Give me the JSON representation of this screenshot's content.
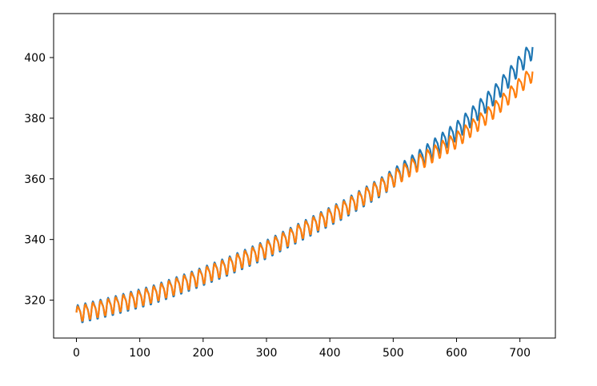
{
  "chart_data": {
    "type": "line",
    "title": "",
    "xlabel": "",
    "ylabel": "",
    "xlim": [
      -36,
      756
    ],
    "ylim": [
      307.5,
      414.5
    ],
    "xticks": [
      0,
      100,
      200,
      300,
      400,
      500,
      600,
      700
    ],
    "yticks": [
      320,
      340,
      360,
      380,
      400
    ],
    "grid": false,
    "legend": "none",
    "seasonal_period": 12,
    "series": [
      {
        "color": "#1f77b4",
        "trend_x": [
          0,
          60,
          120,
          180,
          240,
          300,
          360,
          420,
          480,
          540,
          600,
          660,
          720
        ],
        "trend_y": [
          315.5,
          318.5,
          322.0,
          326.5,
          331.5,
          337.0,
          343.5,
          350.0,
          357.5,
          366.5,
          376.0,
          388.0,
          403.0
        ],
        "seasonal_amplitude": 3.3
      },
      {
        "color": "#ff7f0e",
        "trend_x": [
          0,
          60,
          120,
          180,
          240,
          300,
          360,
          420,
          480,
          540,
          600,
          660,
          720
        ],
        "trend_y": [
          315.5,
          318.5,
          322.0,
          326.5,
          331.5,
          337.0,
          343.5,
          350.0,
          357.5,
          365.5,
          373.0,
          383.0,
          395.0
        ],
        "seasonal_amplitude": 2.8
      }
    ]
  }
}
